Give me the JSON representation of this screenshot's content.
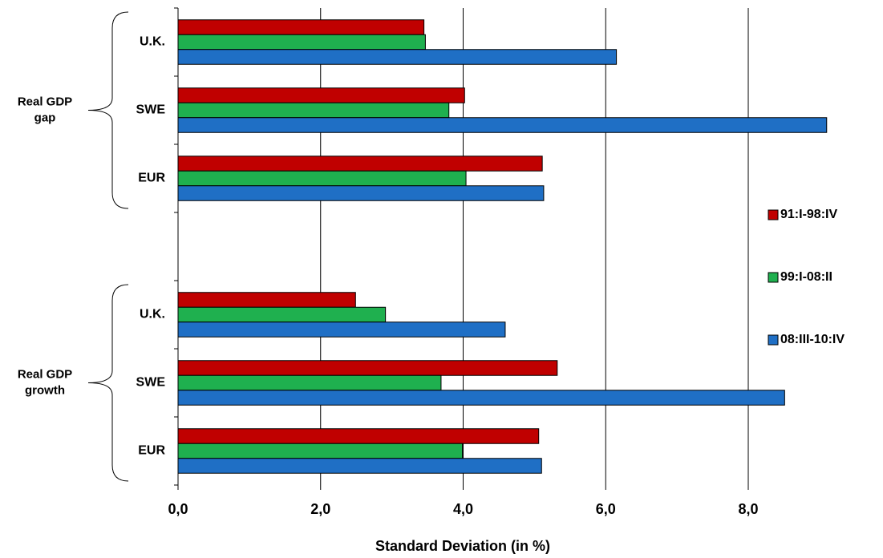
{
  "chart_data": {
    "type": "hbar",
    "x_label": "Standard Deviation (in %)",
    "categories": [
      "U.K.",
      "SWE",
      "EUR",
      null,
      "U.K.",
      "SWE",
      "EUR"
    ],
    "groups": [
      {
        "lines": [
          "Real GDP",
          "gap"
        ],
        "from": 0,
        "to": 2
      },
      {
        "lines": [
          "Real GDP",
          "growth"
        ],
        "from": 4,
        "to": 6
      }
    ],
    "series": [
      {
        "name": "91:I-98:IV",
        "color": "#c00000",
        "values": [
          3.45,
          4.02,
          5.11,
          null,
          2.49,
          5.32,
          5.06
        ]
      },
      {
        "name": "99:I-08:II",
        "color": "#1fb04f",
        "values": [
          3.47,
          3.8,
          4.04,
          null,
          2.91,
          3.69,
          3.99
        ]
      },
      {
        "name": "08:III-10:IV",
        "color": "#1f6fc5",
        "values": [
          6.15,
          9.1,
          5.13,
          null,
          4.59,
          8.51,
          5.1
        ]
      }
    ],
    "xlim": [
      0,
      9.2
    ],
    "xticks": [
      {
        "value": 0,
        "label": "0,0"
      },
      {
        "value": 2,
        "label": "2,0"
      },
      {
        "value": 4,
        "label": "4,0"
      },
      {
        "value": 6,
        "label": "6,0"
      },
      {
        "value": 8,
        "label": "8,0"
      }
    ],
    "grid": true
  }
}
